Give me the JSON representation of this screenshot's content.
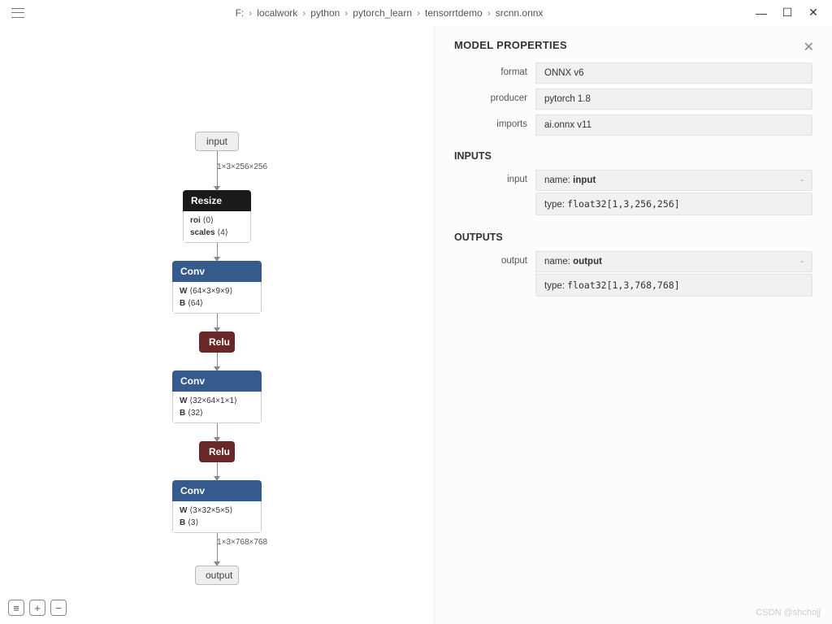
{
  "breadcrumb": [
    "F:",
    "localwork",
    "python",
    "pytorch_learn",
    "tensorrtdemo",
    "srcnn.onnx"
  ],
  "graph": {
    "input_label": "input",
    "output_label": "output",
    "edge_in": "1×3×256×256",
    "edge_out": "1×3×768×768",
    "nodes": [
      {
        "type": "resize",
        "title": "Resize",
        "attrs": [
          {
            "k": "roi",
            "v": "⟨0⟩"
          },
          {
            "k": "scales",
            "v": "⟨4⟩"
          }
        ]
      },
      {
        "type": "conv",
        "title": "Conv",
        "attrs": [
          {
            "k": "W",
            "v": "⟨64×3×9×9⟩"
          },
          {
            "k": "B",
            "v": "⟨64⟩"
          }
        ]
      },
      {
        "type": "relu",
        "title": "Relu"
      },
      {
        "type": "conv",
        "title": "Conv",
        "attrs": [
          {
            "k": "W",
            "v": "⟨32×64×1×1⟩"
          },
          {
            "k": "B",
            "v": "⟨32⟩"
          }
        ]
      },
      {
        "type": "relu",
        "title": "Relu"
      },
      {
        "type": "conv",
        "title": "Conv",
        "attrs": [
          {
            "k": "W",
            "v": "⟨3×32×5×5⟩"
          },
          {
            "k": "B",
            "v": "⟨3⟩"
          }
        ]
      }
    ]
  },
  "sidebar": {
    "title": "MODEL PROPERTIES",
    "props": [
      {
        "label": "format",
        "value": "ONNX v6"
      },
      {
        "label": "producer",
        "value": "pytorch 1.8"
      },
      {
        "label": "imports",
        "value": "ai.onnx v11"
      }
    ],
    "inputs_h": "INPUTS",
    "outputs_h": "OUTPUTS",
    "inputs": [
      {
        "label": "input",
        "name": "input",
        "type": "float32[1,3,256,256]"
      }
    ],
    "outputs": [
      {
        "label": "output",
        "name": "output",
        "type": "float32[1,3,768,768]"
      }
    ]
  },
  "watermark": "CSDN @shchojj",
  "colors": {
    "node_black": "#1a1a1a",
    "node_blue": "#355a8c",
    "node_relu": "#6a2727",
    "io_bg": "#eeeeee",
    "prop_bg": "#f1f1f1"
  }
}
